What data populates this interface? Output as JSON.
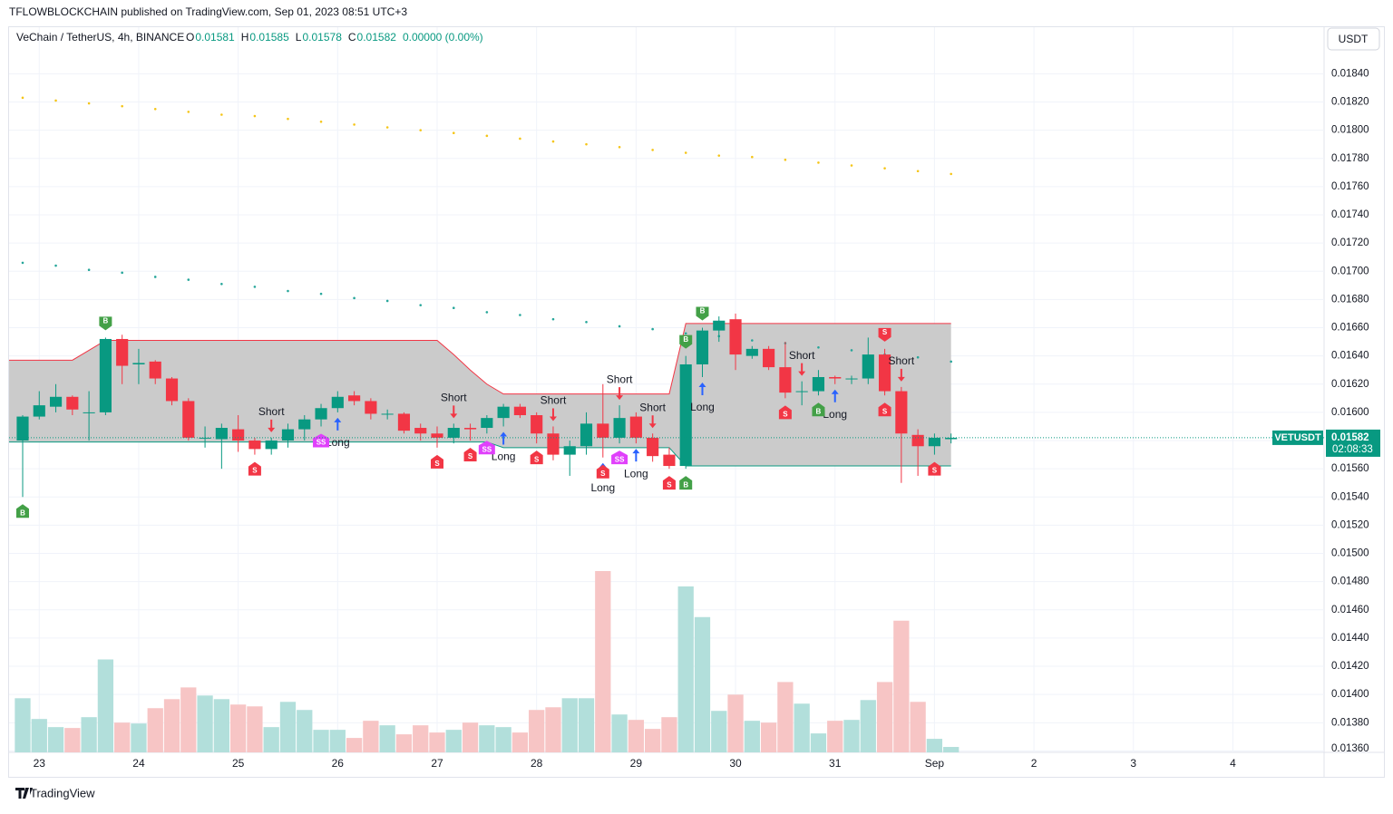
{
  "page": {
    "published": "TFLOWBLOCKCHAIN published on TradingView.com, Sep 01, 2023 08:51 UTC+3",
    "footer": "TradingView",
    "currency_button": "USDT"
  },
  "chart_data": {
    "type": "candlestick",
    "title": "VeChain / TetherUS, 4h, BINANCE",
    "ohlc_header": [
      {
        "label": "O",
        "value": "0.01581"
      },
      {
        "label": "H",
        "value": "0.01585"
      },
      {
        "label": "L",
        "value": "0.01578"
      },
      {
        "label": "C",
        "value": "0.01582"
      }
    ],
    "change": "0.00000 (0.00%)",
    "symbol_tag": "VETUSDT",
    "last_price": "0.01582",
    "countdown": "02:08:33",
    "up_color": "#089981",
    "down_color": "#f23645",
    "volume_up_color": "#b2dfdb",
    "volume_down_color": "#f7c5c5",
    "grid": true,
    "xlim": [
      -0.82,
      78.5
    ],
    "ylim": [
      0.01359,
      0.01873
    ],
    "xticks": [
      {
        "value": 1,
        "label": "23"
      },
      {
        "value": 7,
        "label": "24"
      },
      {
        "value": 13,
        "label": "25"
      },
      {
        "value": 19,
        "label": "26"
      },
      {
        "value": 25,
        "label": "27"
      },
      {
        "value": 31,
        "label": "28"
      },
      {
        "value": 37,
        "label": "29"
      },
      {
        "value": 43,
        "label": "30"
      },
      {
        "value": 49,
        "label": "31"
      },
      {
        "value": 55,
        "label": "Sep"
      },
      {
        "value": 61,
        "label": "2"
      },
      {
        "value": 67,
        "label": "3"
      },
      {
        "value": 73,
        "label": "4"
      }
    ],
    "yticks": [
      {
        "value": 0.0136,
        "label": "0.01360"
      },
      {
        "value": 0.0138,
        "label": "0.01380"
      },
      {
        "value": 0.014,
        "label": "0.01400"
      },
      {
        "value": 0.0142,
        "label": "0.01420"
      },
      {
        "value": 0.0144,
        "label": "0.01440"
      },
      {
        "value": 0.0146,
        "label": "0.01460"
      },
      {
        "value": 0.0148,
        "label": "0.01480"
      },
      {
        "value": 0.015,
        "label": "0.01500"
      },
      {
        "value": 0.0152,
        "label": "0.01520"
      },
      {
        "value": 0.0154,
        "label": "0.01540"
      },
      {
        "value": 0.0156,
        "label": "0.01560"
      },
      {
        "value": 0.0158,
        "label": "0.01580"
      },
      {
        "value": 0.016,
        "label": "0.01600"
      },
      {
        "value": 0.0162,
        "label": "0.01620"
      },
      {
        "value": 0.0164,
        "label": "0.01640"
      },
      {
        "value": 0.0166,
        "label": "0.01660"
      },
      {
        "value": 0.0168,
        "label": "0.01680"
      },
      {
        "value": 0.017,
        "label": "0.01700"
      },
      {
        "value": 0.0172,
        "label": "0.01720"
      },
      {
        "value": 0.0174,
        "label": "0.01740"
      },
      {
        "value": 0.0176,
        "label": "0.01760"
      },
      {
        "value": 0.0178,
        "label": "0.01780"
      },
      {
        "value": 0.018,
        "label": "0.01800"
      },
      {
        "value": 0.0182,
        "label": "0.01820"
      },
      {
        "value": 0.0184,
        "label": "0.01840"
      }
    ],
    "open": [
      0.0158,
      0.01597,
      0.01604,
      0.01611,
      0.016,
      0.016,
      0.01652,
      0.01634,
      0.01636,
      0.01624,
      0.01608,
      0.01582,
      0.01581,
      0.01588,
      0.0158,
      0.01574,
      0.0158,
      0.01588,
      0.01595,
      0.01603,
      0.01612,
      0.01608,
      0.01599,
      0.01599,
      0.01589,
      0.01585,
      0.01582,
      0.01589,
      0.01589,
      0.01596,
      0.01604,
      0.01598,
      0.01585,
      0.0157,
      0.01576,
      0.01592,
      0.01582,
      0.01597,
      0.01582,
      0.0157,
      0.01562,
      0.01634,
      0.01658,
      0.01666,
      0.0164,
      0.01645,
      0.01632,
      0.01615,
      0.01615,
      0.01625,
      0.01624,
      0.01624,
      0.01641,
      0.01615,
      0.01584,
      0.01576,
      0.01581
    ],
    "high": [
      0.01598,
      0.01615,
      0.0162,
      0.01612,
      0.01615,
      0.01653,
      0.01655,
      0.01645,
      0.01637,
      0.01625,
      0.0161,
      0.0159,
      0.01592,
      0.01598,
      0.01582,
      0.01582,
      0.01592,
      0.01598,
      0.01606,
      0.01615,
      0.01615,
      0.0161,
      0.01602,
      0.016,
      0.01592,
      0.0159,
      0.01592,
      0.01592,
      0.01598,
      0.01606,
      0.01606,
      0.016,
      0.0159,
      0.0158,
      0.016,
      0.0162,
      0.01605,
      0.016,
      0.01585,
      0.01575,
      0.0164,
      0.0166,
      0.01668,
      0.0167,
      0.01647,
      0.01647,
      0.0165,
      0.01622,
      0.0163,
      0.01626,
      0.01626,
      0.01653,
      0.01645,
      0.01618,
      0.01588,
      0.01585,
      0.01585
    ],
    "low": [
      0.0154,
      0.01595,
      0.016,
      0.01598,
      0.0158,
      0.01598,
      0.0162,
      0.0162,
      0.0162,
      0.01605,
      0.0158,
      0.01575,
      0.0156,
      0.01572,
      0.0157,
      0.0157,
      0.01575,
      0.0158,
      0.0159,
      0.016,
      0.01605,
      0.01595,
      0.01595,
      0.01585,
      0.0158,
      0.01575,
      0.01578,
      0.0158,
      0.01585,
      0.0159,
      0.01596,
      0.01578,
      0.01566,
      0.01555,
      0.0157,
      0.01568,
      0.01578,
      0.01578,
      0.01565,
      0.0156,
      0.0156,
      0.01625,
      0.0165,
      0.0163,
      0.01638,
      0.0163,
      0.0161,
      0.01605,
      0.01612,
      0.0162,
      0.0162,
      0.0162,
      0.01612,
      0.0155,
      0.01555,
      0.0157,
      0.01578
    ],
    "close": [
      0.01597,
      0.01605,
      0.01611,
      0.01602,
      0.016,
      0.01652,
      0.01633,
      0.01635,
      0.01624,
      0.01608,
      0.01582,
      0.01582,
      0.01589,
      0.0158,
      0.01574,
      0.0158,
      0.01588,
      0.01595,
      0.01603,
      0.01611,
      0.01608,
      0.01599,
      0.01599,
      0.01587,
      0.01585,
      0.01582,
      0.01589,
      0.01588,
      0.01596,
      0.01604,
      0.01598,
      0.01585,
      0.0157,
      0.01576,
      0.01592,
      0.01582,
      0.01596,
      0.01582,
      0.01569,
      0.01562,
      0.01634,
      0.01658,
      0.01665,
      0.01641,
      0.01645,
      0.01632,
      0.01614,
      0.01615,
      0.01625,
      0.01624,
      0.01624,
      0.01641,
      0.01615,
      0.01585,
      0.01576,
      0.01582,
      0.01582
    ],
    "volume": [
      60,
      37,
      28,
      27,
      39,
      103,
      33,
      32,
      49,
      59,
      72,
      63,
      59,
      53,
      51,
      28,
      56,
      47,
      25,
      25,
      16,
      35,
      30,
      20,
      30,
      22,
      25,
      33,
      30,
      28,
      22,
      47,
      50,
      60,
      60,
      201,
      42,
      36,
      26,
      39,
      184,
      150,
      46,
      64,
      35,
      33,
      78,
      54,
      21,
      35,
      36,
      58,
      78,
      146,
      56,
      15,
      6
    ],
    "range_box": {
      "color": "#c8c8c8",
      "upper_color": "#f23645",
      "lower_color": "#089981",
      "upper": [
        0.01637,
        0.01637,
        0.01637,
        0.01637,
        0.01644,
        0.01651,
        0.01651,
        0.01651,
        0.01651,
        0.01651,
        0.01651,
        0.01651,
        0.01651,
        0.01651,
        0.01651,
        0.01651,
        0.01651,
        0.01651,
        0.01651,
        0.01651,
        0.01651,
        0.01651,
        0.01651,
        0.01651,
        0.01651,
        0.01651,
        0.01641,
        0.0163,
        0.0162,
        0.01613,
        0.01613,
        0.01613,
        0.01613,
        0.01613,
        0.01613,
        0.01613,
        0.01613,
        0.01613,
        0.01613,
        0.01613,
        0.01663,
        0.01663,
        0.01663,
        0.01663,
        0.01663,
        0.01663,
        0.01663,
        0.01663,
        0.01663,
        0.01663,
        0.01663,
        0.01663,
        0.01663,
        0.01663,
        0.01663,
        0.01663,
        0.01663
      ],
      "lower": [
        0.01579,
        0.01579,
        0.01579,
        0.01579,
        0.01579,
        0.01579,
        0.01579,
        0.01579,
        0.01579,
        0.01579,
        0.01579,
        0.01579,
        0.01579,
        0.01579,
        0.01579,
        0.01579,
        0.01579,
        0.01579,
        0.01579,
        0.01579,
        0.01579,
        0.01579,
        0.01579,
        0.01579,
        0.01579,
        0.01579,
        0.01579,
        0.01579,
        0.01579,
        0.01575,
        0.01575,
        0.01575,
        0.01575,
        0.01575,
        0.01575,
        0.01575,
        0.01575,
        0.01575,
        0.01575,
        0.01575,
        0.01562,
        0.01562,
        0.01562,
        0.01562,
        0.01562,
        0.01562,
        0.01562,
        0.01562,
        0.01562,
        0.01562,
        0.01562,
        0.01562,
        0.01562,
        0.01562,
        0.01562,
        0.01562,
        0.01562
      ]
    },
    "dots": [
      {
        "color": "#f5c518",
        "x": [
          0,
          2,
          4,
          6,
          8,
          10,
          12,
          14,
          16,
          18,
          20,
          22,
          24,
          26,
          28,
          30,
          32,
          34,
          36,
          38,
          40,
          42,
          44,
          46,
          48,
          50,
          52,
          54,
          56
        ],
        "values": [
          0.01823,
          0.01821,
          0.01819,
          0.01817,
          0.01815,
          0.01813,
          0.01811,
          0.0181,
          0.01808,
          0.01806,
          0.01804,
          0.01802,
          0.018,
          0.01798,
          0.01796,
          0.01794,
          0.01792,
          0.0179,
          0.01788,
          0.01786,
          0.01784,
          0.01782,
          0.01781,
          0.01779,
          0.01777,
          0.01775,
          0.01773,
          0.01771,
          0.01769
        ]
      },
      {
        "color": "#26a69a",
        "x": [
          0,
          2,
          4,
          6,
          8,
          10,
          12,
          14,
          16,
          18,
          20,
          22,
          24,
          26,
          28,
          30,
          32,
          34,
          36,
          38,
          40,
          42,
          44,
          46,
          48,
          50,
          52,
          54,
          56
        ],
        "values": [
          0.01706,
          0.01704,
          0.01701,
          0.01699,
          0.01696,
          0.01694,
          0.01691,
          0.01689,
          0.01686,
          0.01684,
          0.01681,
          0.01679,
          0.01676,
          0.01674,
          0.01671,
          0.01669,
          0.01666,
          0.01664,
          0.01661,
          0.01659,
          0.01656,
          0.01654,
          0.01651,
          0.01649,
          0.01646,
          0.01644,
          0.01641,
          0.01639,
          0.01636
        ]
      }
    ],
    "signals": [
      {
        "index": 15,
        "text": "Short",
        "pos": "above"
      },
      {
        "index": 26,
        "text": "Short",
        "pos": "above"
      },
      {
        "index": 32,
        "text": "Short",
        "pos": "above"
      },
      {
        "index": 36,
        "text": "Short",
        "pos": "above"
      },
      {
        "index": 38,
        "text": "Short",
        "pos": "above"
      },
      {
        "index": 47,
        "text": "Short",
        "pos": "above"
      },
      {
        "index": 53,
        "text": "Short",
        "pos": "above"
      },
      {
        "index": 19,
        "text": "Long",
        "pos": "below"
      },
      {
        "index": 29,
        "text": "Long",
        "pos": "below"
      },
      {
        "index": 35,
        "text": "Long",
        "pos": "below"
      },
      {
        "index": 37,
        "text": "Long",
        "pos": "below"
      },
      {
        "index": 41,
        "text": "Long",
        "pos": "below"
      },
      {
        "index": 49,
        "text": "Long",
        "pos": "below"
      }
    ],
    "tags": [
      {
        "index": 0,
        "text": "B",
        "pos": "below"
      },
      {
        "index": 5,
        "text": "B",
        "pos": "above"
      },
      {
        "index": 40,
        "text": "B",
        "pos": "above"
      },
      {
        "index": 41,
        "text": "B",
        "pos": "above"
      },
      {
        "index": 40,
        "text": "B",
        "pos": "below"
      },
      {
        "index": 48,
        "text": "B",
        "pos": "below"
      },
      {
        "index": 14,
        "text": "S",
        "pos": "below"
      },
      {
        "index": 25,
        "text": "S",
        "pos": "below"
      },
      {
        "index": 27,
        "text": "S",
        "pos": "below"
      },
      {
        "index": 31,
        "text": "S",
        "pos": "below"
      },
      {
        "index": 39,
        "text": "S",
        "pos": "below"
      },
      {
        "index": 46,
        "text": "S",
        "pos": "below"
      },
      {
        "index": 52,
        "text": "S",
        "pos": "below"
      },
      {
        "index": 52,
        "text": "S",
        "pos": "above"
      },
      {
        "index": 55,
        "text": "S",
        "pos": "below"
      },
      {
        "index": 35,
        "text": "S",
        "pos": "below"
      },
      {
        "index": 18,
        "text": "SS",
        "pos": "below"
      },
      {
        "index": 28,
        "text": "SS",
        "pos": "below"
      },
      {
        "index": 36,
        "text": "SS",
        "pos": "below"
      }
    ]
  }
}
